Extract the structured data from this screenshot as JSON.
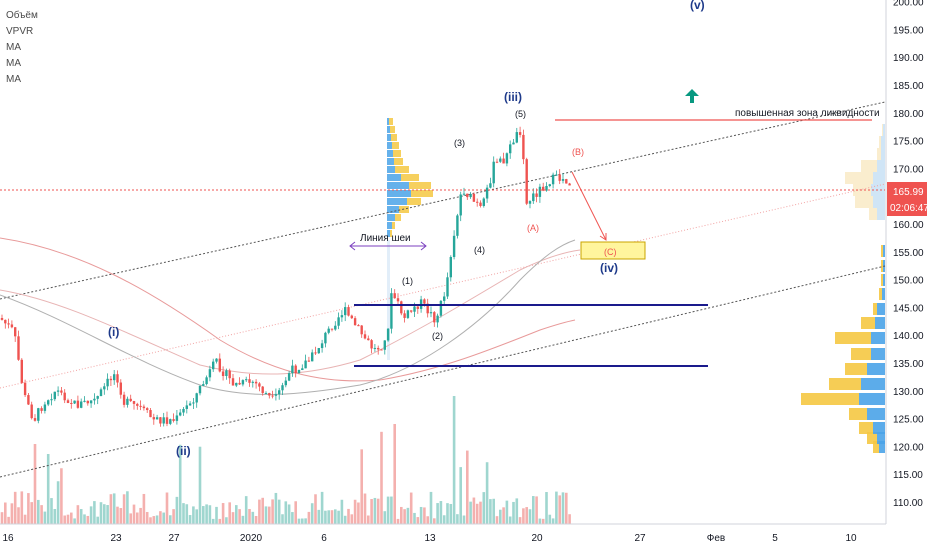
{
  "legend": [
    "Объём",
    "VPVR",
    "MA",
    "MA",
    "MA"
  ],
  "price_scale": {
    "ticks": [
      "110.00",
      "115.00",
      "120.00",
      "125.00",
      "130.00",
      "135.00",
      "140.00",
      "145.00",
      "150.00",
      "155.00",
      "160.00",
      "165.00",
      "170.00",
      "175.00",
      "180.00",
      "185.00",
      "190.00",
      "195.00",
      "200.00"
    ],
    "current_price": "165.99",
    "countdown": "02:06:47",
    "price_badge_color": "#ef5350"
  },
  "time_scale": {
    "ticks": [
      "16",
      "23",
      "27",
      "2020",
      "6",
      "13",
      "20",
      "27",
      "Фев",
      "5",
      "10"
    ]
  },
  "annotations": {
    "neckline_label": "Линия шеи",
    "liquidity_label": "повышенная зона ликвидности",
    "wave_i": "(i)",
    "wave_ii": "(ii)",
    "wave_iii": "(iii)",
    "wave_iv": "(iv)",
    "wave_v": "(v)",
    "sub_1": "(1)",
    "sub_2": "(2)",
    "sub_3": "(3)",
    "sub_4": "(4)",
    "sub_5": "(5)",
    "corr_A": "(A)",
    "corr_B": "(B)",
    "corr_C": "(C)"
  },
  "colors": {
    "up": "#26a69a",
    "down": "#ef5350",
    "wave_label": "#1e3a8a",
    "level_line": "#1a1a8c",
    "arrow_up": "#089981",
    "target_box": "#fff59d",
    "vp_up": "#4aa3e8",
    "vp_down": "#f5c842"
  }
}
